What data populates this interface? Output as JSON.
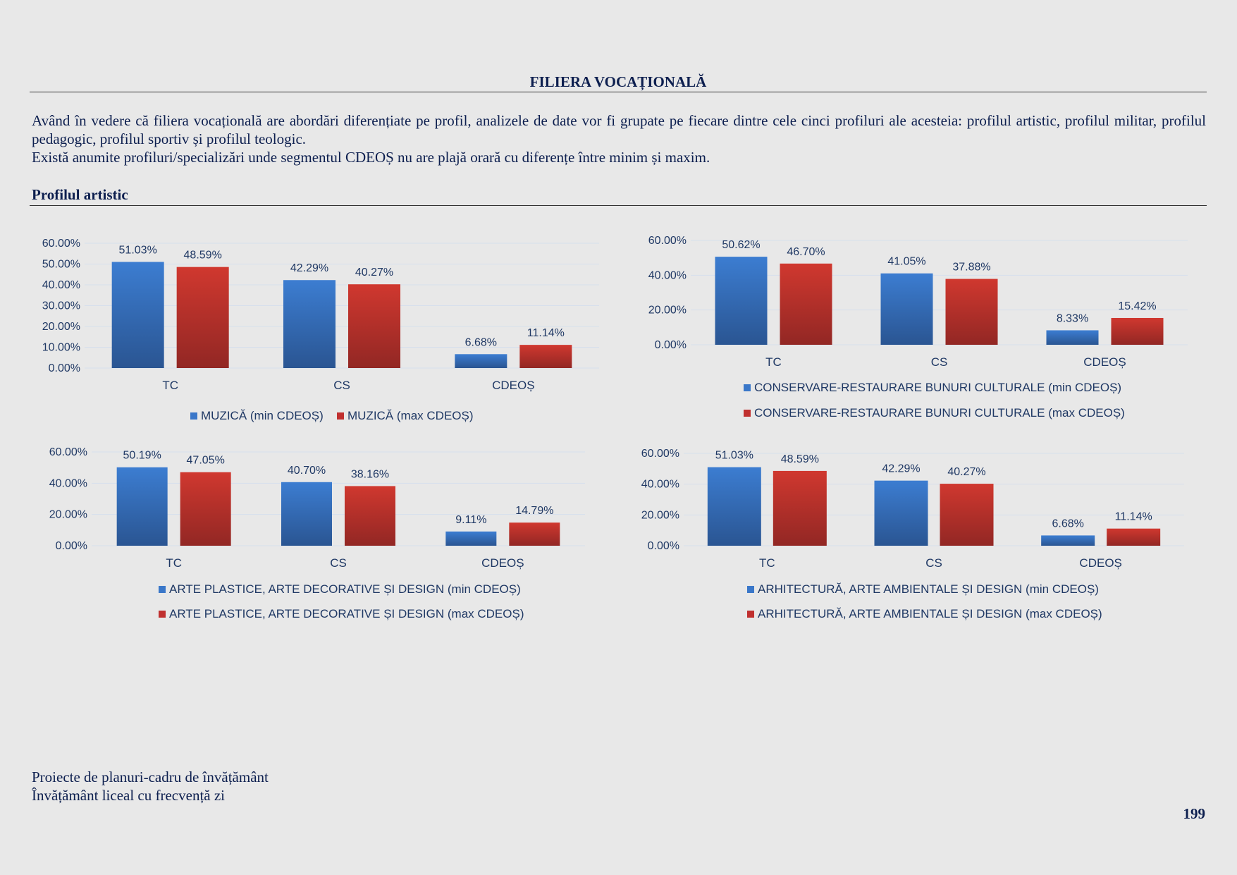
{
  "title": "FILIERA VOCAȚIONALĂ",
  "intro": {
    "paragraph1": "Având în vedere că filiera vocațională are abordări diferențiate pe profil, analizele de date vor fi grupate pe fiecare dintre cele cinci profiluri ale acesteia: profilul artistic, profilul militar, profilul pedagogic, profilul sportiv și profilul teologic.",
    "paragraph2": "Există anumite profiluri/specializări unde segmentul CDEOȘ nu are plajă orară cu diferențe între minim și maxim."
  },
  "section_heading": "Profilul artistic",
  "colors": {
    "min": "#3a77c9",
    "max": "#c0302f",
    "grid": "#d6dfec",
    "text": "#1f3864"
  },
  "chart_data": [
    {
      "type": "bar",
      "categories": [
        "TC",
        "CS",
        "CDEOȘ"
      ],
      "series": [
        {
          "name": "MUZICĂ (min CDEOȘ)",
          "values": [
            51.03,
            42.29,
            6.68
          ],
          "labels": [
            "51.03%",
            "42.29%",
            "6.68%"
          ]
        },
        {
          "name": "MUZICĂ (max CDEOȘ)",
          "values": [
            48.59,
            40.27,
            11.14
          ],
          "labels": [
            "48.59%",
            "40.27%",
            "11.14%"
          ]
        }
      ],
      "yticks": [
        "0.00%",
        "10.00%",
        "20.00%",
        "30.00%",
        "40.00%",
        "50.00%",
        "60.00%"
      ],
      "ylim": [
        0,
        60
      ],
      "legend": "bottom-inline"
    },
    {
      "type": "bar",
      "categories": [
        "TC",
        "CS",
        "CDEOȘ"
      ],
      "series": [
        {
          "name": "CONSERVARE-RESTAURARE BUNURI CULTURALE (min CDEOȘ)",
          "values": [
            50.62,
            41.05,
            8.33
          ],
          "labels": [
            "50.62%",
            "41.05%",
            "8.33%"
          ]
        },
        {
          "name": "CONSERVARE-RESTAURARE BUNURI CULTURALE (max CDEOȘ)",
          "values": [
            46.7,
            37.88,
            15.42
          ],
          "labels": [
            "46.70%",
            "37.88%",
            "15.42%"
          ]
        }
      ],
      "yticks": [
        "0.00%",
        "20.00%",
        "40.00%",
        "60.00%"
      ],
      "ylim": [
        0,
        60
      ],
      "legend": "bottom-stacked"
    },
    {
      "type": "bar",
      "categories": [
        "TC",
        "CS",
        "CDEOȘ"
      ],
      "series": [
        {
          "name": "ARTE PLASTICE, ARTE DECORATIVE ȘI DESIGN (min CDEOȘ)",
          "values": [
            50.19,
            40.7,
            9.11
          ],
          "labels": [
            "50.19%",
            "40.70%",
            "9.11%"
          ]
        },
        {
          "name": "ARTE PLASTICE, ARTE DECORATIVE ȘI DESIGN (max CDEOȘ)",
          "values": [
            47.05,
            38.16,
            14.79
          ],
          "labels": [
            "47.05%",
            "38.16%",
            "14.79%"
          ]
        }
      ],
      "yticks": [
        "0.00%",
        "20.00%",
        "40.00%",
        "60.00%"
      ],
      "ylim": [
        0,
        60
      ],
      "legend": "bottom-stacked"
    },
    {
      "type": "bar",
      "categories": [
        "TC",
        "CS",
        "CDEOȘ"
      ],
      "series": [
        {
          "name": "ARHITECTURĂ, ARTE AMBIENTALE ȘI DESIGN (min CDEOȘ)",
          "values": [
            51.03,
            42.29,
            6.68
          ],
          "labels": [
            "51.03%",
            "42.29%",
            "6.68%"
          ]
        },
        {
          "name": "ARHITECTURĂ, ARTE AMBIENTALE ȘI DESIGN (max CDEOȘ)",
          "values": [
            48.59,
            40.27,
            11.14
          ],
          "labels": [
            "48.59%",
            "40.27%",
            "11.14%"
          ]
        }
      ],
      "yticks": [
        "0.00%",
        "20.00%",
        "40.00%",
        "60.00%"
      ],
      "ylim": [
        0,
        60
      ],
      "legend": "bottom-stacked"
    }
  ],
  "footer": {
    "line1": "Proiecte de planuri-cadru de învățământ",
    "line2": "Învățământ liceal cu frecvență zi"
  },
  "page_number": "199"
}
